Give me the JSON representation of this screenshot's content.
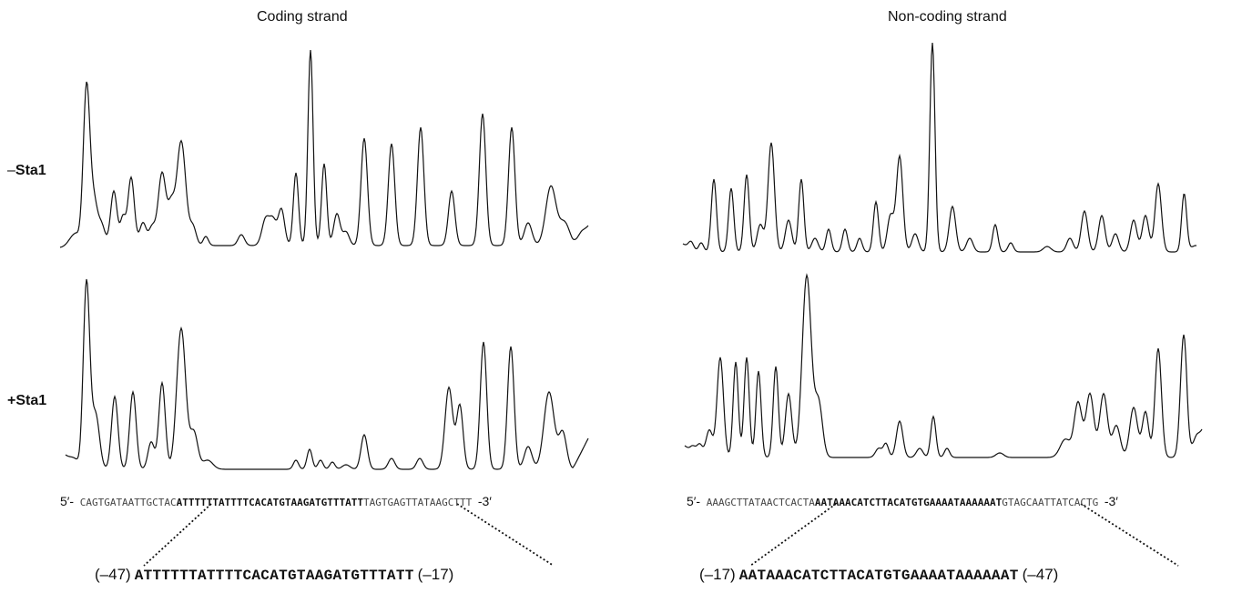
{
  "columns": [
    {
      "title": "Coding strand",
      "sequence": {
        "prime5": "5′-",
        "flank_left": "CAGTGATAATTGCTAC",
        "core": "ATTTTTTATTTTCACATGTAAGATGTTTATT",
        "flank_right": "TAGTGAGTTATAAGCTTT",
        "prime3": "-3′"
      },
      "footprint": {
        "left_pos": "(–47)",
        "core": "ATTTTTTATTTTCACATGTAAGATGTTTATT",
        "right_pos": "(–17)"
      }
    },
    {
      "title": "Non-coding strand",
      "sequence": {
        "prime5": "5′-",
        "flank_left": "AAAGCTTATAACTCACTA",
        "core": "AATAAACATCTTACATGTGAAAATAAAAAAT",
        "flank_right": "GTAGCAATTATCACTG",
        "prime3": "-3′"
      },
      "footprint": {
        "left_pos": "(–17)",
        "core": "AATAAACATCTTACATGTGAAAATAAAAAAT",
        "right_pos": "(–47)"
      }
    }
  ],
  "rows": [
    {
      "sign": "–",
      "name": "Sta1"
    },
    {
      "sign": "+",
      "name": "Sta1"
    }
  ]
}
